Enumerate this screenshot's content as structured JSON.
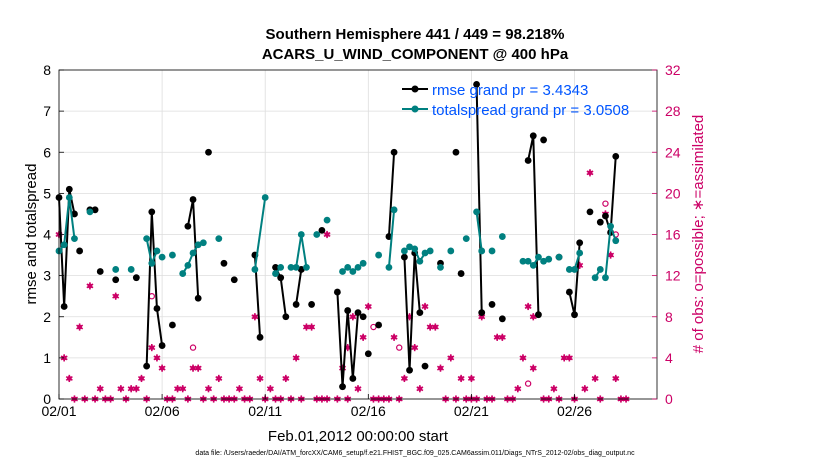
{
  "header": {
    "title_line1": "Southern Hemisphere 441 / 449 = 98.218%",
    "title_line2": "ACARS_U_WIND_COMPONENT @ 400 hPa"
  },
  "footer": {
    "data_file": "data file: /Users/raeder/DAI/ATM_forcXX/CAM6_setup/f.e21.FHIST_BGC.f09_025.CAM6assim.011/Diags_NTrS_2012-02/obs_diag_output.nc"
  },
  "colors": {
    "rmse": "#000000",
    "spread": "#008080",
    "obs": "#cc0066",
    "legend_text": "#0055ff",
    "grid": "#dddddd"
  },
  "chart_data": {
    "type": "line",
    "xlabel": "Feb.01,2012 00:00:00 start",
    "ylabel_left": "rmse and totalspread",
    "ylabel_right": "# of obs: o=possible; ∗=assimilated",
    "xlim": [
      0,
      29
    ],
    "ylim_left": [
      0,
      8
    ],
    "ylim_right": [
      0,
      32
    ],
    "xticks": [
      0,
      5,
      10,
      15,
      20,
      25
    ],
    "xtick_labels": [
      "02/01",
      "02/06",
      "02/11",
      "02/16",
      "02/21",
      "02/26"
    ],
    "yticks_left": [
      0,
      1,
      2,
      3,
      4,
      5,
      6,
      7,
      8
    ],
    "yticks_right": [
      0,
      4,
      8,
      12,
      16,
      20,
      24,
      28,
      32
    ],
    "grid": true,
    "legend_position": "top-right",
    "series": [
      {
        "name": "rmse grand pr = 3.4343",
        "axis": "left",
        "segments": [
          [
            [
              0,
              4.9
            ],
            [
              0.25,
              2.25
            ],
            [
              0.5,
              5.1
            ],
            [
              0.75,
              4.5
            ]
          ],
          [
            [
              1,
              3.6
            ]
          ],
          [
            [
              1.5,
              4.6
            ],
            [
              1.75,
              4.6
            ]
          ],
          [
            [
              2,
              3.1
            ]
          ],
          [
            [
              2.75,
              2.9
            ]
          ],
          [
            [
              3.75,
              2.95
            ]
          ],
          [
            [
              4.25,
              0.8
            ],
            [
              4.5,
              4.55
            ],
            [
              4.75,
              2.2
            ],
            [
              5,
              1.3
            ]
          ],
          [
            [
              5.5,
              1.8
            ]
          ],
          [
            [
              6.25,
              4.2
            ],
            [
              6.5,
              4.85
            ],
            [
              6.75,
              2.45
            ]
          ],
          [
            [
              7.25,
              6.0
            ]
          ],
          [
            [
              8,
              3.3
            ]
          ],
          [
            [
              8.5,
              2.9
            ]
          ],
          [
            [
              9.5,
              3.5
            ],
            [
              9.75,
              1.5
            ]
          ],
          [
            [
              10.5,
              3.2
            ],
            [
              10.75,
              2.95
            ],
            [
              11,
              2.0
            ]
          ],
          [
            [
              11.5,
              2.3
            ],
            [
              11.75,
              3.15
            ]
          ],
          [
            [
              12.25,
              2.3
            ]
          ],
          [
            [
              12.75,
              4.1
            ]
          ],
          [
            [
              13.5,
              2.6
            ],
            [
              13.75,
              0.3
            ],
            [
              14,
              2.15
            ],
            [
              14.25,
              0.5
            ],
            [
              14.5,
              2.1
            ]
          ],
          [
            [
              14.75,
              2.0
            ]
          ],
          [
            [
              15,
              1.1
            ]
          ],
          [
            [
              15.5,
              1.8
            ]
          ],
          [
            [
              16,
              3.95
            ],
            [
              16.25,
              6.0
            ]
          ],
          [
            [
              16.75,
              3.45
            ],
            [
              17,
              0.7
            ],
            [
              17.25,
              3.55
            ],
            [
              17.5,
              2.1
            ]
          ],
          [
            [
              17.75,
              0.8
            ]
          ],
          [
            [
              18.5,
              3.3
            ]
          ],
          [
            [
              19.25,
              6.0
            ]
          ],
          [
            [
              19.5,
              3.05
            ]
          ],
          [
            [
              20.25,
              7.65
            ],
            [
              20.5,
              2.1
            ]
          ],
          [
            [
              21,
              2.3
            ]
          ],
          [
            [
              21.5,
              1.95
            ]
          ],
          [
            [
              22.75,
              5.8
            ],
            [
              23,
              6.4
            ],
            [
              23.25,
              2.05
            ]
          ],
          [
            [
              23.5,
              6.3
            ]
          ],
          [
            [
              24.25,
              3.45
            ]
          ],
          [
            [
              24.75,
              2.6
            ],
            [
              25,
              2.05
            ],
            [
              25.25,
              3.8
            ]
          ],
          [
            [
              25.75,
              4.55
            ]
          ],
          [
            [
              26.25,
              4.3
            ]
          ],
          [
            [
              26.5,
              4.45
            ],
            [
              26.75,
              4.05
            ],
            [
              27,
              5.9
            ]
          ]
        ]
      },
      {
        "name": "totalspread grand pr = 3.0508",
        "axis": "left",
        "segments": [
          [
            [
              0,
              3.6
            ],
            [
              0.25,
              3.75
            ],
            [
              0.5,
              4.9
            ],
            [
              0.75,
              3.9
            ]
          ],
          [
            [
              1.5,
              4.55
            ]
          ],
          [
            [
              2.75,
              3.15
            ]
          ],
          [
            [
              3.5,
              3.15
            ]
          ],
          [
            [
              4.25,
              3.9
            ],
            [
              4.5,
              3.3
            ],
            [
              4.75,
              3.6
            ]
          ],
          [
            [
              5,
              3.45
            ]
          ],
          [
            [
              5.5,
              3.5
            ]
          ],
          [
            [
              6,
              3.05
            ],
            [
              6.25,
              3.25
            ],
            [
              6.5,
              3.55
            ],
            [
              6.75,
              3.75
            ]
          ],
          [
            [
              7,
              3.8
            ]
          ],
          [
            [
              7.75,
              3.9
            ]
          ],
          [
            [
              9.5,
              3.15
            ],
            [
              10,
              4.9
            ]
          ],
          [
            [
              10.5,
              3.05
            ],
            [
              10.75,
              3.2
            ]
          ],
          [
            [
              11.25,
              3.2
            ],
            [
              11.5,
              3.2
            ],
            [
              11.75,
              4.0
            ],
            [
              12,
              3.2
            ]
          ],
          [
            [
              12.5,
              4.0
            ]
          ],
          [
            [
              13,
              4.35
            ]
          ],
          [
            [
              13.75,
              3.1
            ],
            [
              14,
              3.2
            ],
            [
              14.25,
              3.1
            ],
            [
              14.5,
              3.2
            ]
          ],
          [
            [
              14.75,
              3.3
            ]
          ],
          [
            [
              15.5,
              3.5
            ]
          ],
          [
            [
              16,
              3.2
            ],
            [
              16.25,
              4.6
            ]
          ],
          [
            [
              16.75,
              3.6
            ],
            [
              17,
              3.7
            ],
            [
              17.25,
              3.65
            ],
            [
              17.5,
              3.35
            ],
            [
              17.75,
              3.55
            ]
          ],
          [
            [
              18,
              3.6
            ]
          ],
          [
            [
              18.5,
              3.2
            ]
          ],
          [
            [
              19,
              3.6
            ]
          ],
          [
            [
              19.75,
              3.9
            ]
          ],
          [
            [
              20.25,
              4.55
            ],
            [
              20.5,
              3.6
            ]
          ],
          [
            [
              21,
              3.6
            ]
          ],
          [
            [
              21.5,
              3.95
            ]
          ],
          [
            [
              22.5,
              3.35
            ]
          ],
          [
            [
              22.75,
              3.35
            ],
            [
              23,
              3.25
            ],
            [
              23.25,
              3.45
            ]
          ],
          [
            [
              23.5,
              3.35
            ]
          ],
          [
            [
              23.75,
              3.4
            ]
          ],
          [
            [
              24.25,
              3.45
            ]
          ],
          [
            [
              24.75,
              3.15
            ],
            [
              25,
              3.15
            ],
            [
              25.25,
              3.55
            ]
          ],
          [
            [
              26,
              2.95
            ],
            [
              26.25,
              3.15
            ]
          ],
          [
            [
              26.5,
              2.95
            ],
            [
              26.75,
              4.2
            ],
            [
              27,
              3.85
            ]
          ]
        ]
      },
      {
        "name": "# obs assimilated",
        "axis": "right",
        "marker": "asterisk",
        "points": [
          [
            0,
            16
          ],
          [
            0.25,
            4
          ],
          [
            0.5,
            2
          ],
          [
            0.75,
            0
          ],
          [
            1,
            7
          ],
          [
            1.25,
            0
          ],
          [
            1.5,
            11
          ],
          [
            1.75,
            0
          ],
          [
            2,
            1
          ],
          [
            2.25,
            0
          ],
          [
            2.5,
            0
          ],
          [
            2.75,
            10
          ],
          [
            3,
            1
          ],
          [
            3.25,
            0
          ],
          [
            3.5,
            1
          ],
          [
            3.75,
            1
          ],
          [
            4,
            2
          ],
          [
            4.25,
            0
          ],
          [
            4.5,
            5
          ],
          [
            4.75,
            4
          ],
          [
            5,
            3
          ],
          [
            5.25,
            0
          ],
          [
            5.5,
            0
          ],
          [
            5.75,
            1
          ],
          [
            6,
            1
          ],
          [
            6.25,
            0
          ],
          [
            6.5,
            3
          ],
          [
            6.75,
            3
          ],
          [
            7,
            0
          ],
          [
            7.25,
            1
          ],
          [
            7.5,
            0
          ],
          [
            7.75,
            2
          ],
          [
            8,
            0
          ],
          [
            8.25,
            0
          ],
          [
            8.5,
            0
          ],
          [
            8.75,
            1
          ],
          [
            9,
            0
          ],
          [
            9.25,
            0
          ],
          [
            9.5,
            8
          ],
          [
            9.75,
            2
          ],
          [
            10,
            0
          ],
          [
            10.25,
            1
          ],
          [
            10.5,
            0
          ],
          [
            10.75,
            0
          ],
          [
            11,
            2
          ],
          [
            11.25,
            0
          ],
          [
            11.5,
            4
          ],
          [
            11.75,
            0
          ],
          [
            12,
            7
          ],
          [
            12.25,
            7
          ],
          [
            12.5,
            0
          ],
          [
            12.75,
            0
          ],
          [
            13,
            0
          ],
          [
            13,
            16
          ],
          [
            13.5,
            0
          ],
          [
            13.75,
            3
          ],
          [
            14,
            0
          ],
          [
            14,
            5
          ],
          [
            14.25,
            8
          ],
          [
            14.5,
            1
          ],
          [
            14.75,
            6
          ],
          [
            15,
            9
          ],
          [
            15.25,
            0
          ],
          [
            15.5,
            0
          ],
          [
            15.75,
            0
          ],
          [
            16,
            0
          ],
          [
            16.25,
            6
          ],
          [
            16.5,
            0
          ],
          [
            16.75,
            2
          ],
          [
            17,
            8
          ],
          [
            17.25,
            5
          ],
          [
            17.5,
            1
          ],
          [
            17.75,
            9
          ],
          [
            18,
            7
          ],
          [
            18.25,
            7
          ],
          [
            18.5,
            3
          ],
          [
            18.75,
            0
          ],
          [
            19,
            4
          ],
          [
            19.25,
            0
          ],
          [
            19.5,
            2
          ],
          [
            19.75,
            0
          ],
          [
            20,
            0
          ],
          [
            20,
            2
          ],
          [
            20.25,
            0
          ],
          [
            20.5,
            8
          ],
          [
            20.75,
            0
          ],
          [
            21,
            0
          ],
          [
            21.25,
            6
          ],
          [
            21.5,
            6
          ],
          [
            21.75,
            0
          ],
          [
            22,
            0
          ],
          [
            22.25,
            1
          ],
          [
            22.5,
            4
          ],
          [
            22.75,
            9
          ],
          [
            23,
            8
          ],
          [
            23,
            3
          ],
          [
            23.5,
            0
          ],
          [
            23.75,
            0
          ],
          [
            24,
            1
          ],
          [
            24.25,
            0
          ],
          [
            24.5,
            4
          ],
          [
            24.75,
            4
          ],
          [
            25,
            0
          ],
          [
            25.25,
            13
          ],
          [
            25.5,
            1
          ],
          [
            25.75,
            22
          ],
          [
            26,
            2
          ],
          [
            26.25,
            0
          ],
          [
            26.5,
            18
          ],
          [
            26.75,
            14
          ],
          [
            27,
            2
          ],
          [
            27.25,
            0
          ],
          [
            27.5,
            0
          ]
        ]
      },
      {
        "name": "# obs possible",
        "axis": "right",
        "marker": "circle",
        "points": [
          [
            4.5,
            10
          ],
          [
            6.5,
            5
          ],
          [
            15.25,
            7
          ],
          [
            16.5,
            5
          ],
          [
            22.75,
            1.5
          ],
          [
            26.5,
            19
          ],
          [
            27,
            16
          ]
        ]
      }
    ]
  }
}
